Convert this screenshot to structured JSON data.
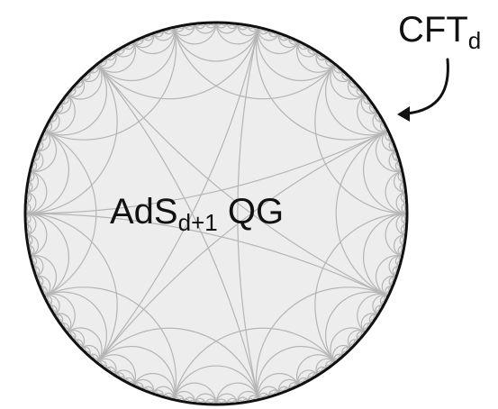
{
  "diagram": {
    "center_label": {
      "base": "AdS",
      "subscript": "d+1",
      "suffix": " QG"
    },
    "boundary_label": {
      "base": "CFT",
      "subscript": "d"
    },
    "colors": {
      "disk_fill": "#ededed",
      "boundary_stroke": "#111111",
      "tiling_stroke": "#b5b5b5",
      "text": "#111111"
    }
  }
}
